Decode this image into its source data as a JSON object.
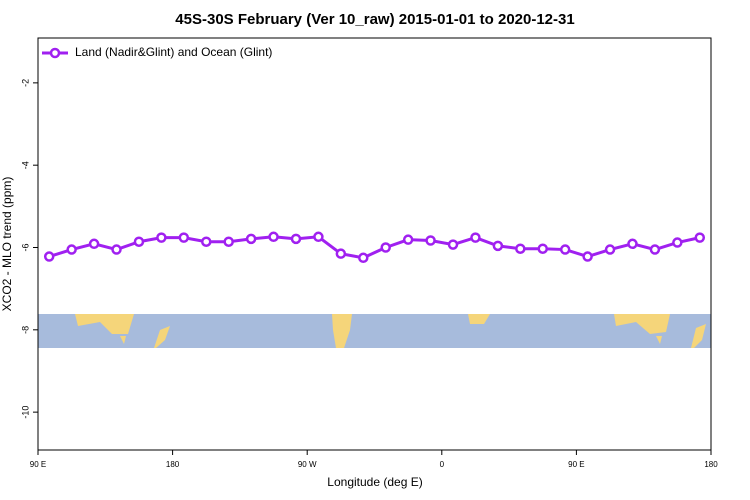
{
  "chart_data": {
    "type": "line",
    "title": "45S-30S February (Ver 10_raw)   2015-01-01 to 2020-12-31",
    "x_label": "Longitude (deg E)",
    "y_label": "XCO2 - MLO trend (ppm)",
    "x": [
      97.5,
      112.5,
      127.5,
      142.5,
      157.5,
      172.5,
      187.5,
      202.5,
      217.5,
      232.5,
      247.5,
      262.5,
      277.5,
      292.5,
      307.5,
      322.5,
      337.5,
      352.5,
      367.5,
      382.5,
      397.5,
      412.5,
      427.5,
      442.5,
      457.5,
      472.5,
      487.5,
      502.5,
      517.5,
      532.5
    ],
    "series": [
      {
        "name": "Land (Nadir&Glint) and Ocean (Glint)",
        "color": "#a020f0",
        "values": [
          -6.22,
          -6.05,
          -5.91,
          -6.05,
          -5.86,
          -5.76,
          -5.76,
          -5.86,
          -5.86,
          -5.79,
          -5.74,
          -5.79,
          -5.74,
          -6.15,
          -6.25,
          -6.0,
          -5.81,
          -5.83,
          -5.93,
          -5.76,
          -5.96,
          -6.03,
          -6.03,
          -6.05,
          -6.22,
          -6.05,
          -5.91,
          -6.05,
          -5.88,
          -5.76
        ]
      }
    ],
    "xlim": [
      90,
      540
    ],
    "xticks": [
      {
        "value": 90,
        "label": "90 E"
      },
      {
        "value": 180,
        "label": "180"
      },
      {
        "value": 270,
        "label": "90 W"
      },
      {
        "value": 360,
        "label": "0"
      },
      {
        "value": 450,
        "label": "90 E"
      },
      {
        "value": 540,
        "label": "180"
      }
    ],
    "ylim": [
      -10.92,
      -0.91
    ],
    "yticks": [
      -2,
      -4,
      -6,
      -8,
      -10
    ],
    "legend": "top-left"
  }
}
